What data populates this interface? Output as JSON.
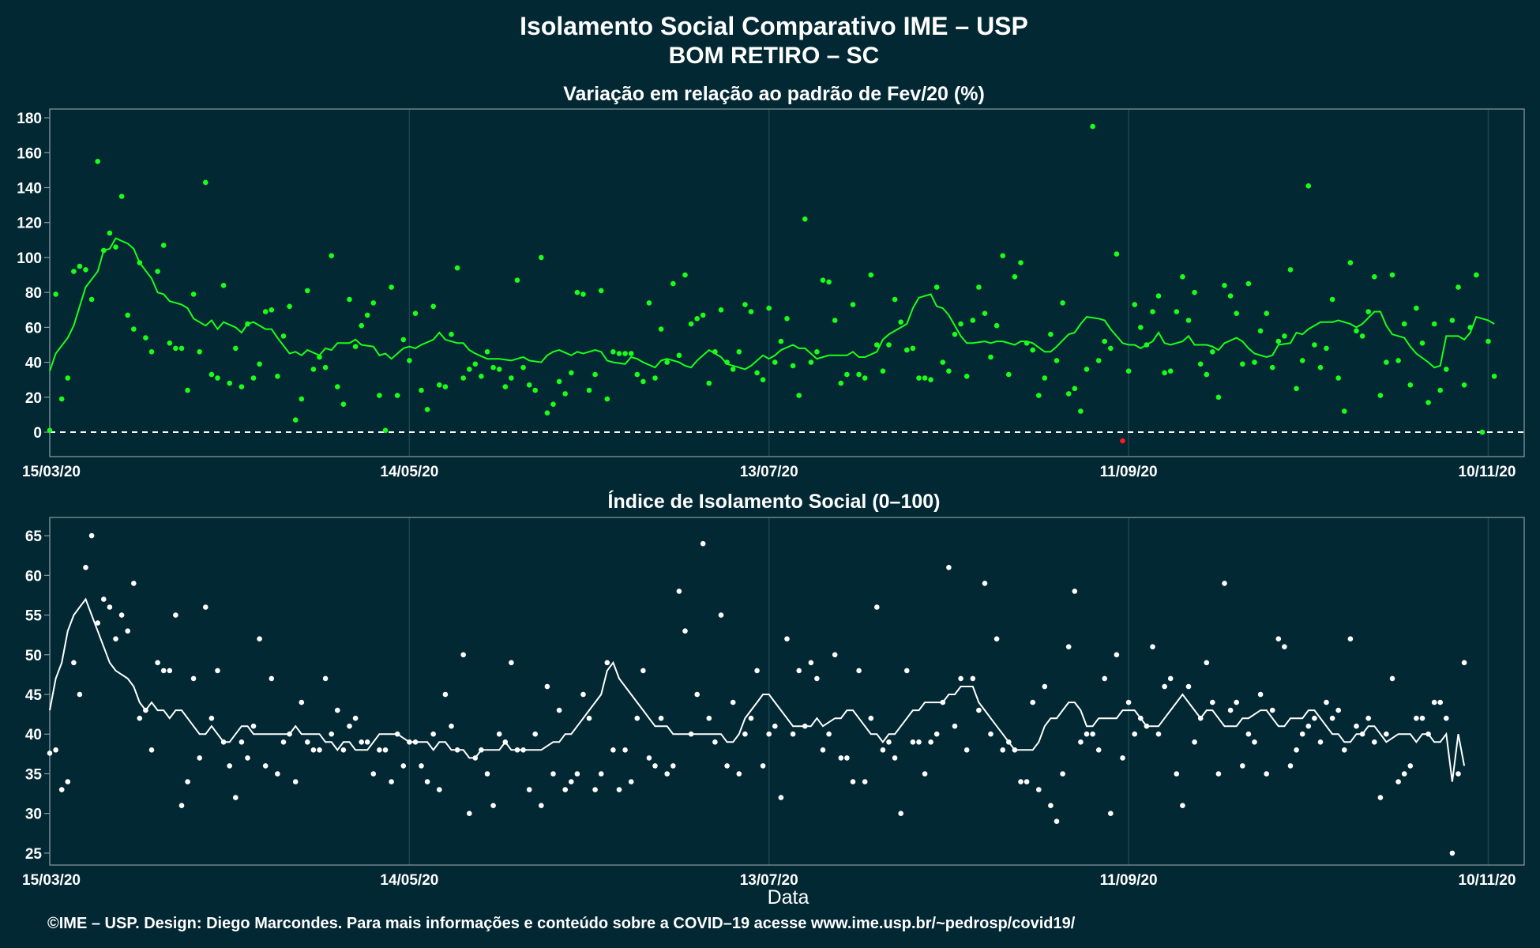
{
  "header": {
    "title_line1": "Isolamento Social Comparativo IME – USP",
    "title_line2": "BOM RETIRO – SC"
  },
  "footer": {
    "credit": "©IME – USP. Design: Diego Marcondes. Para mais informações e conteúdo sobre a COVID–19 acesse www.ime.usp.br/~pedrosp/covid19/"
  },
  "colors": {
    "background": "#022834",
    "panel_border": "#8a9ba3",
    "gridline": "#1c4552",
    "variation_series": "#19ff19",
    "variation_negative": "#ff1a1a",
    "index_series": "#ffffff",
    "text": "#ffffff"
  },
  "chart_data": [
    {
      "type": "scatter",
      "title": "Variação em relação ao padrão de Fev/20 (%)",
      "xlabel": "",
      "ylabel": "",
      "x_range": [
        "2020-03-15",
        "2020-11-16"
      ],
      "ylim": [
        -14,
        185
      ],
      "yticks": [
        0,
        20,
        40,
        60,
        80,
        100,
        120,
        140,
        160,
        180
      ],
      "xtick_labels": [
        "15/03/20",
        "14/05/20",
        "13/07/20",
        "11/09/20",
        "10/11/20"
      ],
      "xtick_dates": [
        "2020-03-15",
        "2020-05-14",
        "2020-07-13",
        "2020-09-11",
        "2020-11-10"
      ],
      "reference_line": 0,
      "grid": "vertical",
      "start_date": "2020-03-15",
      "points": [
        1,
        79,
        19,
        31,
        92,
        95,
        93,
        76,
        155,
        104,
        114,
        106,
        135,
        67,
        59,
        97,
        54,
        46,
        92,
        107,
        51,
        48,
        48,
        24,
        79,
        46,
        143,
        33,
        31,
        84,
        28,
        48,
        26,
        62,
        31,
        39,
        69,
        70,
        32,
        55,
        72,
        7,
        19,
        81,
        36,
        43,
        37,
        101,
        26,
        16,
        76,
        49,
        61,
        67,
        74,
        21,
        1,
        83,
        21,
        53,
        41,
        68,
        24,
        13,
        72,
        27,
        26,
        56,
        94,
        31,
        36,
        39,
        32,
        46,
        37,
        36,
        26,
        31,
        87,
        37,
        27,
        24,
        100,
        11,
        16,
        29,
        22,
        34,
        80,
        79,
        24,
        33,
        81,
        19,
        46,
        45,
        45,
        45,
        33,
        29,
        74,
        31,
        59,
        40,
        85,
        44,
        90,
        62,
        65,
        67,
        28,
        46,
        70,
        40,
        36,
        46,
        73,
        69,
        34,
        30,
        71,
        40,
        52,
        65,
        38,
        21,
        122,
        40,
        46,
        87,
        86,
        64,
        28,
        33,
        73,
        33,
        31,
        90,
        50,
        35,
        50,
        76,
        63,
        47,
        48,
        31,
        31,
        30,
        83,
        40,
        35,
        56,
        62,
        32,
        64,
        83,
        68,
        43,
        61,
        101,
        33,
        89,
        97,
        51,
        47,
        21,
        31,
        56,
        41,
        74,
        22,
        25,
        12,
        36,
        175,
        41,
        52,
        48,
        102,
        -5,
        35,
        73,
        60,
        50,
        69,
        78,
        34,
        35,
        69,
        89,
        64,
        80,
        39,
        33,
        46,
        20,
        84,
        78,
        68,
        39,
        85,
        40,
        58,
        68,
        37,
        52,
        55,
        93,
        25,
        41,
        141,
        50,
        37,
        48,
        76,
        31,
        12,
        97,
        58,
        55,
        69,
        89,
        21,
        40,
        90,
        41,
        62,
        27,
        71,
        51,
        17,
        62,
        24,
        36,
        64,
        83,
        27,
        60,
        90,
        0,
        52,
        32
      ],
      "moving_average": [
        35,
        45,
        54,
        61,
        72,
        83,
        92,
        104,
        105,
        111,
        108,
        105,
        97,
        88,
        80,
        79,
        75,
        73,
        71,
        65,
        61,
        64,
        59,
        63,
        60,
        57,
        62,
        63,
        59,
        59,
        54,
        45,
        46,
        44,
        47,
        44,
        48,
        47,
        51,
        51,
        53,
        50,
        49,
        44,
        45,
        42,
        48,
        49,
        48,
        50,
        53,
        57,
        53,
        51,
        51,
        47,
        45,
        42,
        42,
        42,
        41,
        42,
        43,
        41,
        40,
        44,
        46,
        47,
        44,
        46,
        45,
        47,
        46,
        41,
        40,
        39,
        43,
        42,
        40,
        37,
        41,
        42,
        40,
        38,
        37,
        41,
        47,
        45,
        43,
        39,
        37,
        36,
        38,
        44,
        42,
        44,
        47,
        50,
        48,
        48,
        42,
        43,
        44,
        44,
        44,
        46,
        43,
        43,
        46,
        53,
        56,
        60,
        62,
        71,
        77,
        79,
        72,
        71,
        67,
        55,
        51,
        51,
        52,
        51,
        52,
        52,
        50,
        52,
        52,
        51,
        46,
        46,
        49,
        56,
        57,
        62,
        66,
        65,
        64,
        59,
        51,
        50,
        50,
        48,
        52,
        57,
        51,
        50,
        52,
        55,
        50,
        50,
        49,
        47,
        51,
        54,
        52,
        48,
        45,
        43,
        44,
        50,
        51,
        57,
        56,
        59,
        63,
        63,
        63,
        64,
        62,
        60,
        62,
        69,
        69,
        61,
        56,
        54,
        49,
        45,
        40,
        37,
        38,
        55,
        55,
        53,
        57,
        66,
        64,
        62
      ]
    },
    {
      "type": "scatter",
      "title": "Índice de Isolamento Social (0–100)",
      "xlabel": "Data",
      "ylabel": "",
      "x_range": [
        "2020-03-15",
        "2020-11-16"
      ],
      "ylim": [
        23.5,
        67.3
      ],
      "yticks": [
        25,
        30,
        35,
        40,
        45,
        50,
        55,
        60,
        65
      ],
      "xtick_labels": [
        "15/03/20",
        "14/05/20",
        "13/07/20",
        "11/09/20",
        "10/11/20"
      ],
      "xtick_dates": [
        "2020-03-15",
        "2020-05-14",
        "2020-07-13",
        "2020-09-11",
        "2020-11-10"
      ],
      "grid": "vertical",
      "start_date": "2020-03-15",
      "points": [
        37.6,
        38,
        33,
        34,
        49,
        45,
        61,
        65,
        54,
        57,
        56,
        52,
        55,
        53,
        59,
        42,
        43,
        38,
        49,
        48,
        48,
        55,
        31,
        34,
        47,
        37,
        56,
        42,
        48,
        39,
        36,
        32,
        39,
        37,
        41,
        52,
        36,
        47,
        35,
        39,
        40,
        34,
        44,
        39,
        38,
        38,
        47,
        40,
        43,
        38,
        41,
        42,
        39,
        39,
        35,
        38,
        38,
        34,
        40,
        36,
        39,
        39,
        36,
        34,
        40,
        33,
        45,
        41,
        38,
        50,
        30,
        37,
        38,
        35,
        31,
        40,
        39,
        49,
        38,
        38,
        33,
        40,
        31,
        46,
        35,
        43,
        33,
        34,
        35,
        45,
        42,
        33,
        35,
        49,
        38,
        33,
        38,
        34,
        42,
        48,
        37,
        36,
        42,
        35,
        36,
        58,
        53,
        40,
        45,
        64,
        42,
        39,
        55,
        36,
        44,
        35,
        40,
        42,
        48,
        36,
        40,
        41,
        32,
        52,
        40,
        48,
        41,
        49,
        47,
        38,
        40,
        50,
        37,
        37,
        34,
        48,
        34,
        42,
        56,
        38,
        39,
        37,
        30,
        48,
        39,
        39,
        35,
        39,
        40,
        44,
        61,
        41,
        47,
        38,
        47,
        43,
        59,
        40,
        52,
        38,
        39,
        38,
        34,
        34,
        44,
        33,
        46,
        31,
        29,
        35,
        51,
        58,
        39,
        40,
        40,
        38,
        47,
        30,
        50,
        37,
        44,
        40,
        42,
        41,
        51,
        40,
        46,
        47,
        35,
        31,
        46,
        39,
        42,
        49,
        44,
        35,
        59,
        43,
        44,
        36,
        40,
        39,
        45,
        35,
        43,
        52,
        51,
        36,
        38,
        40,
        41,
        42,
        39,
        44,
        42,
        43,
        38,
        52,
        41,
        40,
        42,
        39,
        32,
        40,
        47,
        34,
        35,
        36,
        42,
        42,
        40,
        44,
        44,
        42,
        25,
        35,
        49
      ],
      "moving_average": [
        43,
        47,
        49,
        53,
        55,
        56,
        57,
        55,
        53,
        51,
        49,
        48,
        47,
        46,
        44,
        43,
        44,
        43,
        43,
        42,
        43,
        43,
        42,
        41,
        40,
        40,
        41,
        40,
        39,
        39,
        40,
        41,
        41,
        40,
        40,
        40,
        40,
        40,
        40,
        41,
        40,
        40,
        40,
        40,
        39,
        39,
        38,
        39,
        39,
        38,
        38,
        38,
        39,
        40,
        40,
        40,
        40,
        39,
        39,
        39,
        39,
        38,
        39,
        39,
        38,
        38,
        38,
        37,
        37,
        38,
        38,
        38,
        38,
        39,
        38,
        38,
        38,
        38,
        38,
        38,
        39,
        39,
        40,
        40,
        41,
        42,
        43,
        44,
        45,
        48,
        49,
        47,
        46,
        45,
        44,
        43,
        42,
        41,
        41,
        41,
        40,
        40,
        40,
        40,
        40,
        40,
        40,
        40,
        39,
        39,
        40,
        42,
        43,
        44,
        45,
        45,
        44,
        43,
        42,
        41,
        41,
        41,
        41,
        42,
        41,
        42,
        42,
        43,
        43,
        42,
        41,
        40,
        40,
        39,
        40,
        40,
        41,
        42,
        43,
        43,
        44,
        44,
        44,
        44,
        45,
        45,
        46,
        46,
        44,
        43,
        42,
        41,
        40,
        39,
        38,
        38,
        38,
        38,
        39,
        41,
        42,
        42,
        43,
        44,
        44,
        43,
        41,
        41,
        42,
        42,
        42,
        43,
        43,
        43,
        42,
        41,
        41,
        41,
        42,
        43,
        44,
        45,
        44,
        43,
        42,
        43,
        43,
        42,
        41,
        41,
        41,
        42,
        42,
        43,
        43,
        42,
        41,
        41,
        42,
        42,
        42,
        43,
        43,
        42,
        41,
        40,
        40,
        39,
        39,
        40,
        40,
        41,
        41,
        40,
        39,
        40,
        40,
        40,
        39,
        40,
        40,
        39,
        39,
        40,
        34,
        40,
        36
      ]
    }
  ]
}
